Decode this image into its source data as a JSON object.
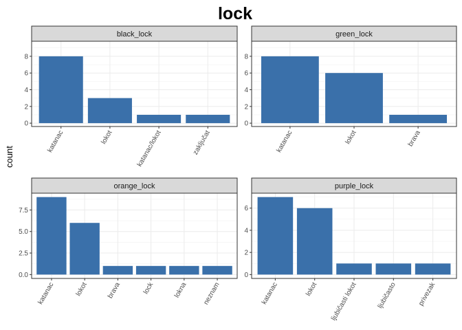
{
  "chart_data": {
    "type": "bar",
    "title": "lock",
    "ylabel": "count",
    "xlabel": "",
    "grid": true,
    "bar_color": "#3A70AA",
    "panels": [
      {
        "name": "black_lock",
        "categories": [
          "katanac",
          "lokot",
          "katanac/lokot",
          "zaključat"
        ],
        "values": [
          8,
          3,
          1,
          1
        ],
        "ylim": [
          -0.4,
          9.8
        ],
        "yticks": [
          0,
          2,
          4,
          6,
          8
        ],
        "ytick_labels": [
          "0",
          "2",
          "4",
          "6",
          "8"
        ]
      },
      {
        "name": "green_lock",
        "categories": [
          "katanac",
          "lokot",
          "brava"
        ],
        "values": [
          8,
          6,
          1
        ],
        "ylim": [
          -0.4,
          9.8
        ],
        "yticks": [
          0,
          2,
          4,
          6,
          8
        ],
        "ytick_labels": [
          "0",
          "2",
          "4",
          "6",
          "8"
        ]
      },
      {
        "name": "orange_lock",
        "categories": [
          "katanac",
          "lokot",
          "brava",
          "lock",
          "lokna",
          "neznam"
        ],
        "values": [
          9,
          6,
          1,
          1,
          1,
          1
        ],
        "ylim": [
          -0.45,
          9.45
        ],
        "yticks": [
          0,
          2.5,
          5,
          7.5
        ],
        "ytick_labels": [
          "0.0",
          "2.5",
          "5.0",
          "7.5"
        ]
      },
      {
        "name": "purple_lock",
        "categories": [
          "katanac",
          "lokot",
          "ljubičasti lokot",
          "ljubičasto",
          "privezak"
        ],
        "values": [
          7,
          6,
          1,
          1,
          1
        ],
        "ylim": [
          -0.35,
          7.35
        ],
        "yticks": [
          0,
          2,
          4,
          6
        ],
        "ytick_labels": [
          "0",
          "2",
          "4",
          "6"
        ]
      }
    ]
  }
}
